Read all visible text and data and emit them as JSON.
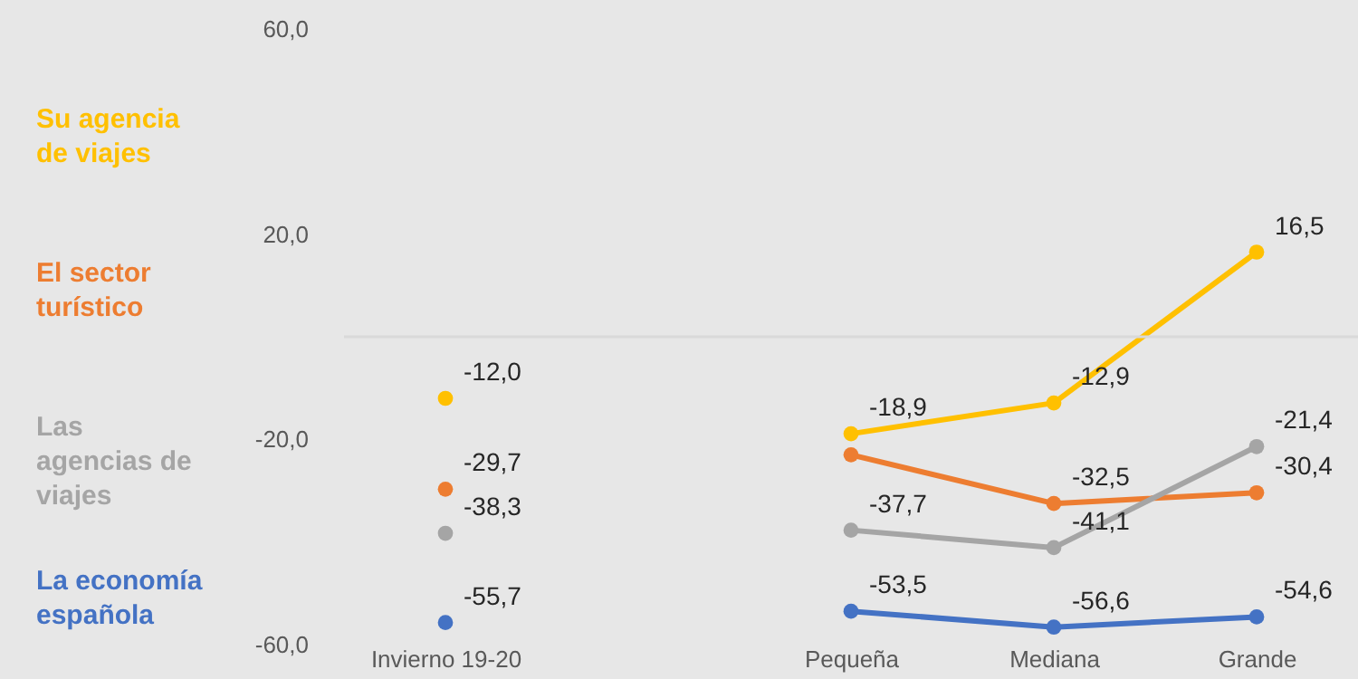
{
  "chart_data": {
    "type": "line",
    "categories": [
      "Invierno 19-20",
      null,
      "Pequeña",
      "Mediana",
      "Grande"
    ],
    "series": [
      {
        "name": "Su agencia de viajes",
        "color": "#ffc000",
        "values": [
          -12.0,
          null,
          -18.9,
          -12.9,
          16.5
        ],
        "value_labels": [
          "-12,0",
          null,
          "-18,9",
          "-12,9",
          "16,5"
        ]
      },
      {
        "name": "El sector turístico",
        "color": "#ed7d31",
        "values": [
          -29.7,
          null,
          -23.0,
          -32.5,
          -30.4
        ],
        "value_labels": [
          "-29,7",
          null,
          null,
          "-32,5",
          "-30,4"
        ]
      },
      {
        "name": "Las agencias de viajes",
        "color": "#a5a5a5",
        "values": [
          -38.3,
          null,
          -37.7,
          -41.1,
          -21.4
        ],
        "value_labels": [
          "-38,3",
          null,
          "-37,7",
          "-41,1",
          "-21,4"
        ]
      },
      {
        "name": "La economía española",
        "color": "#4472c4",
        "values": [
          -55.7,
          null,
          -53.5,
          -56.6,
          -54.6
        ],
        "value_labels": [
          "-55,7",
          null,
          "-53,5",
          "-56,6",
          "-54,6"
        ]
      }
    ],
    "ylim": [
      -60,
      60
    ],
    "yticks": [
      {
        "value": 60,
        "label": "60,0"
      },
      {
        "value": 20,
        "label": "20,0"
      },
      {
        "value": -20,
        "label": "-20,0"
      },
      {
        "value": -60,
        "label": "-60,0"
      }
    ],
    "ref_lines": [
      {
        "axis": "y",
        "value": 0,
        "color": "#d9d9d9"
      }
    ],
    "grid": false,
    "legend": "left",
    "marker": "circle",
    "line_style": "solid"
  }
}
